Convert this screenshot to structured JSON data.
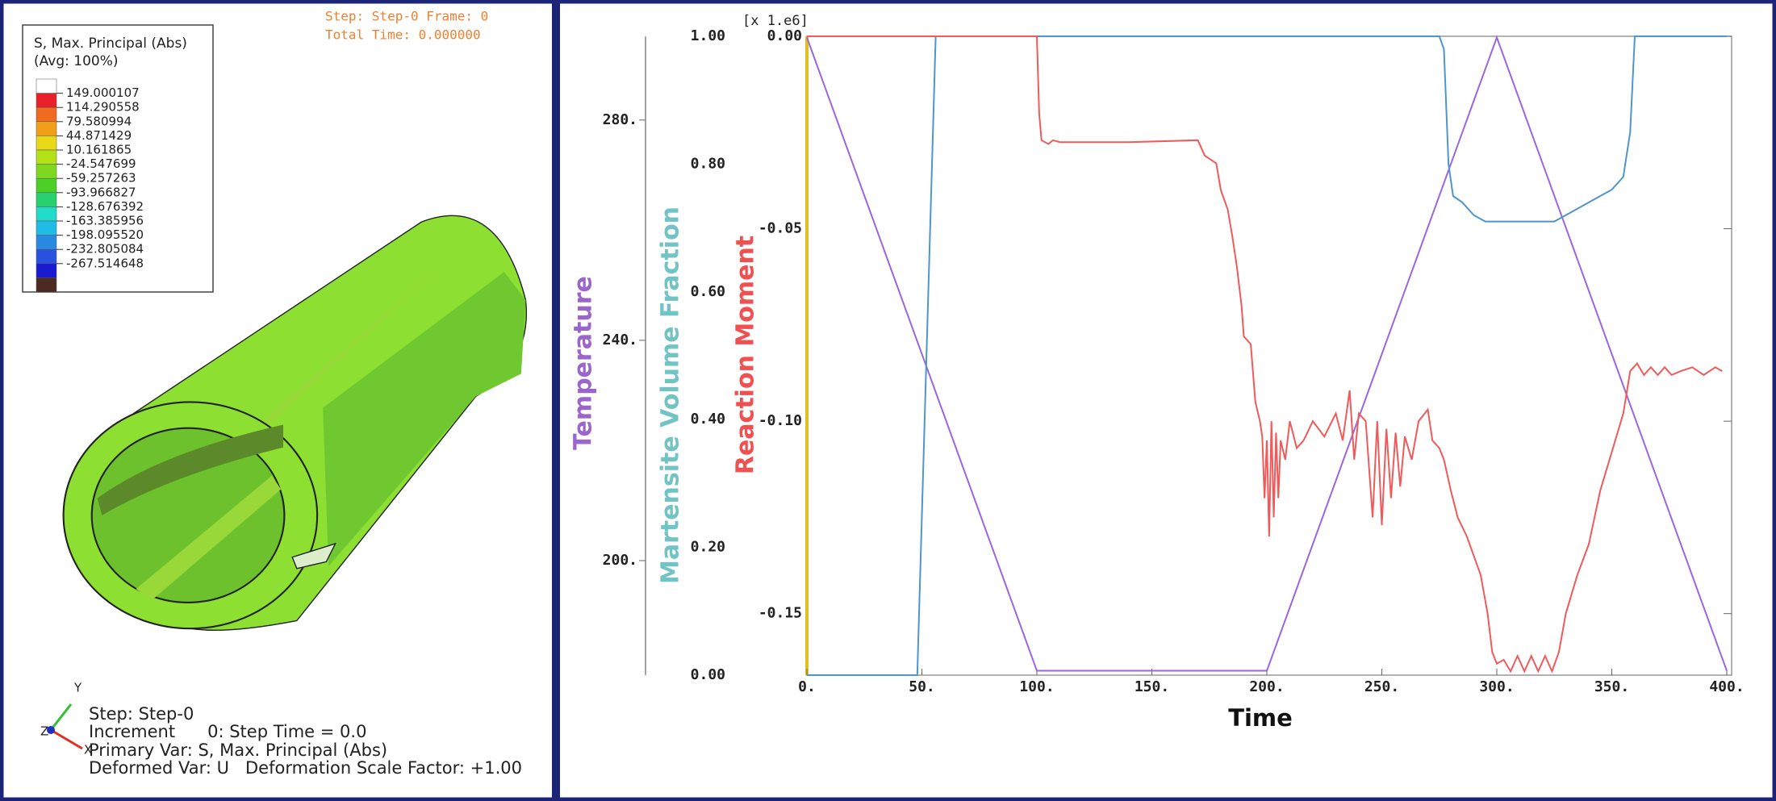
{
  "viewport": {
    "header": [
      "Step: Step-0    Frame: 0",
      "Total Time: 0.000000"
    ],
    "legend": {
      "title": "S, Max. Principal (Abs)",
      "subtitle": "(Avg: 100%)",
      "values": [
        "149.000107",
        "114.290558",
        "79.580994",
        "44.871429",
        "10.161865",
        "-24.547699",
        "-59.257263",
        "-93.966827",
        "-128.676392",
        "-163.385956",
        "-198.095520",
        "-232.805084",
        "-267.514648"
      ],
      "colors": [
        "#ffffff",
        "#e8202a",
        "#f06a20",
        "#f0a018",
        "#e8d818",
        "#b4e018",
        "#7ed820",
        "#4cd028",
        "#28d070",
        "#20dcc8",
        "#20bce8",
        "#2a8ae0",
        "#2a52e0",
        "#1a1ad0",
        "#4a2a22"
      ]
    },
    "triad": [
      "Y",
      "Z",
      "X"
    ],
    "info": [
      "Step: Step-0",
      "Increment      0: Step Time = 0.0",
      "Primary Var: S, Max. Principal (Abs)",
      "Deformed Var: U   Deformation Scale Factor: +1.00"
    ]
  },
  "chart_data": {
    "type": "line",
    "xlabel": "Time",
    "ylabel": "Reaction Moment",
    "y2label": "Martensite Volume Fraction",
    "y3label": "Temperature",
    "y_multiplier": "[x 1.e6]",
    "xlim": [
      0,
      400
    ],
    "xticks": [
      {
        "value": 0,
        "label": "0."
      },
      {
        "value": 50,
        "label": "50."
      },
      {
        "value": 100,
        "label": "100."
      },
      {
        "value": 150,
        "label": "150."
      },
      {
        "value": 200,
        "label": "200."
      },
      {
        "value": 250,
        "label": "250."
      },
      {
        "value": 300,
        "label": "300."
      },
      {
        "value": 350,
        "label": "350."
      },
      {
        "value": 400,
        "label": "400."
      }
    ],
    "ylim": [
      -0.166,
      0
    ],
    "yticks": [
      {
        "value": 0,
        "label": "0.00"
      },
      {
        "value": -0.05,
        "label": "-0.05"
      },
      {
        "value": -0.1,
        "label": "-0.10"
      },
      {
        "value": -0.15,
        "label": "-0.15"
      }
    ],
    "y2lim": [
      0,
      1
    ],
    "y2ticks": [
      {
        "value": 0,
        "label": "0.00"
      },
      {
        "value": 0.2,
        "label": "0.20"
      },
      {
        "value": 0.4,
        "label": "0.40"
      },
      {
        "value": 0.6,
        "label": "0.60"
      },
      {
        "value": 0.8,
        "label": "0.80"
      },
      {
        "value": 1,
        "label": "1.00"
      }
    ],
    "y3lim": [
      179.2,
      295.2
    ],
    "y3ticks": [
      {
        "value": 200,
        "label": "200."
      },
      {
        "value": 240,
        "label": "240."
      },
      {
        "value": 280,
        "label": "280."
      }
    ],
    "series": [
      {
        "axis": "y3",
        "color": "#9b66dd",
        "x": [
          0,
          100,
          200,
          300,
          400
        ],
        "values": [
          295,
          180,
          180,
          295,
          180
        ]
      },
      {
        "axis": "y2",
        "color": "#4f95cc",
        "x": [
          0,
          48,
          56,
          100,
          200,
          275,
          277,
          279,
          281,
          285,
          290,
          295,
          300,
          310,
          325,
          330,
          340,
          350,
          355,
          358,
          360,
          400
        ],
        "values": [
          0,
          0,
          1,
          1,
          1,
          1,
          0.98,
          0.8,
          0.75,
          0.74,
          0.72,
          0.71,
          0.71,
          0.71,
          0.71,
          0.72,
          0.74,
          0.76,
          0.78,
          0.85,
          1,
          1
        ]
      },
      {
        "axis": "y",
        "color": "#f05a5a",
        "x": [
          0,
          100,
          101,
          102,
          105,
          107,
          110,
          140,
          170,
          173,
          178,
          180,
          183,
          185,
          187,
          189,
          190,
          193,
          195,
          197,
          198,
          199,
          200,
          201,
          202,
          203,
          204,
          205,
          206,
          208,
          210,
          213,
          216,
          220,
          225,
          230,
          233,
          236,
          238,
          240,
          243,
          246,
          248,
          250,
          252,
          254,
          256,
          258,
          260,
          263,
          266,
          270,
          272,
          275,
          277,
          280,
          283,
          287,
          290,
          293,
          296,
          298,
          300,
          303,
          306,
          309,
          312,
          315,
          318,
          321,
          324,
          327,
          330,
          335,
          340,
          345,
          350,
          355,
          358,
          361,
          364,
          367,
          370,
          373,
          376,
          380,
          385,
          390,
          395,
          398
        ],
        "values": [
          0,
          0,
          -0.02,
          -0.027,
          -0.028,
          -0.027,
          -0.0275,
          -0.0275,
          -0.027,
          -0.031,
          -0.033,
          -0.04,
          -0.045,
          -0.052,
          -0.06,
          -0.07,
          -0.078,
          -0.08,
          -0.095,
          -0.1,
          -0.104,
          -0.12,
          -0.105,
          -0.13,
          -0.1,
          -0.125,
          -0.103,
          -0.12,
          -0.105,
          -0.11,
          -0.1,
          -0.107,
          -0.105,
          -0.1,
          -0.104,
          -0.098,
          -0.105,
          -0.092,
          -0.11,
          -0.098,
          -0.1,
          -0.125,
          -0.1,
          -0.127,
          -0.102,
          -0.12,
          -0.103,
          -0.117,
          -0.104,
          -0.11,
          -0.1,
          -0.097,
          -0.105,
          -0.107,
          -0.11,
          -0.118,
          -0.125,
          -0.13,
          -0.135,
          -0.14,
          -0.15,
          -0.16,
          -0.163,
          -0.162,
          -0.165,
          -0.161,
          -0.165,
          -0.161,
          -0.165,
          -0.161,
          -0.165,
          -0.16,
          -0.15,
          -0.14,
          -0.132,
          -0.118,
          -0.108,
          -0.098,
          -0.087,
          -0.085,
          -0.088,
          -0.086,
          -0.088,
          -0.086,
          -0.088,
          -0.087,
          -0.086,
          -0.088,
          -0.086,
          -0.087
        ]
      }
    ]
  }
}
